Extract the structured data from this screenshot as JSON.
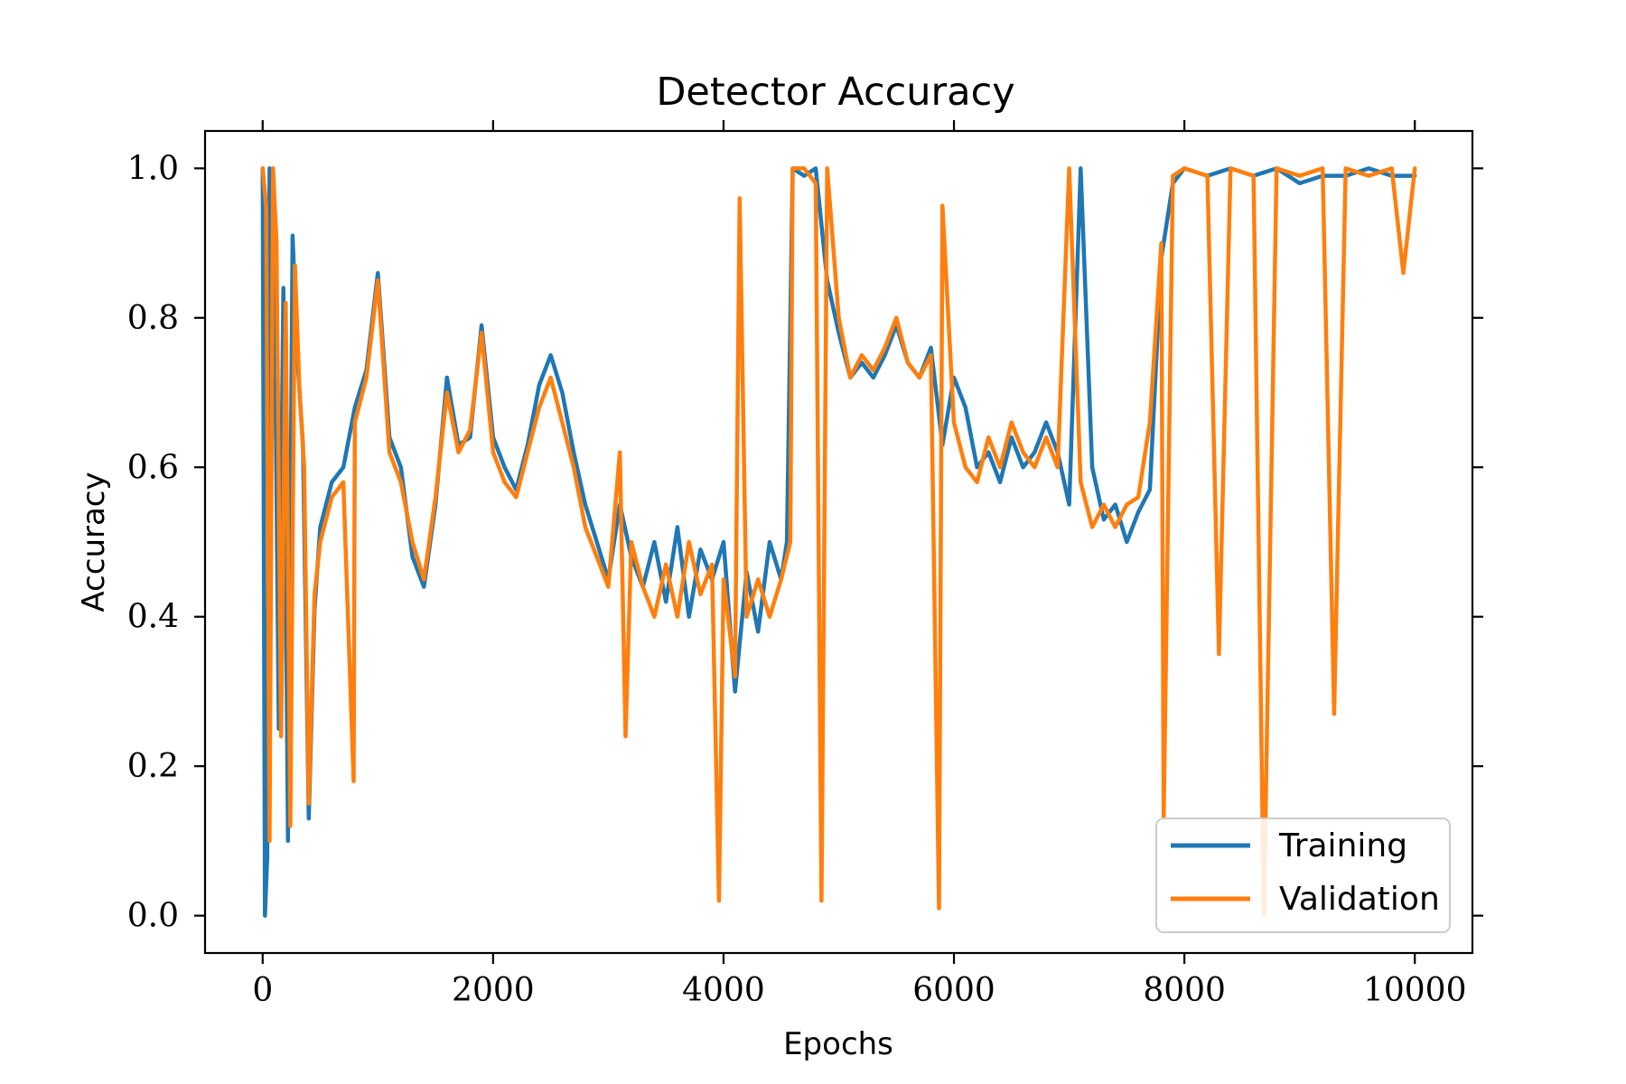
{
  "chart_data": {
    "type": "line",
    "title": "Detector Accuracy",
    "xlabel": "Epochs",
    "ylabel": "Accuracy",
    "xlim": [
      -500,
      10500
    ],
    "ylim": [
      -0.05,
      1.05
    ],
    "xticks": [
      0,
      2000,
      4000,
      6000,
      8000,
      10000
    ],
    "xtick_labels": [
      "0",
      "2000",
      "4000",
      "6000",
      "8000",
      "10000"
    ],
    "yticks": [
      0.0,
      0.2,
      0.4,
      0.6,
      0.8,
      1.0
    ],
    "ytick_labels": [
      "0.0",
      "0.2",
      "0.4",
      "0.6",
      "0.8",
      "1.0"
    ],
    "grid": false,
    "legend_position": "lower-right",
    "series": [
      {
        "name": "Training",
        "color": "#1f77b4",
        "x": [
          0,
          20,
          40,
          60,
          100,
          140,
          180,
          220,
          260,
          300,
          350,
          400,
          450,
          500,
          600,
          700,
          800,
          900,
          1000,
          1100,
          1200,
          1300,
          1400,
          1500,
          1600,
          1700,
          1800,
          1900,
          2000,
          2100,
          2200,
          2300,
          2400,
          2500,
          2600,
          2700,
          2800,
          2900,
          3000,
          3100,
          3200,
          3300,
          3400,
          3500,
          3600,
          3700,
          3800,
          3900,
          4000,
          4100,
          4200,
          4300,
          4400,
          4500,
          4550,
          4600,
          4700,
          4800,
          4900,
          5000,
          5100,
          5200,
          5300,
          5400,
          5500,
          5600,
          5700,
          5800,
          5900,
          6000,
          6100,
          6200,
          6300,
          6400,
          6500,
          6600,
          6700,
          6800,
          6900,
          7000,
          7100,
          7200,
          7300,
          7400,
          7500,
          7600,
          7700,
          7800,
          7900,
          8000,
          8200,
          8400,
          8600,
          8800,
          9000,
          9200,
          9400,
          9600,
          9800,
          10000
        ],
        "y": [
          1.0,
          0.0,
          0.08,
          1.0,
          0.9,
          0.25,
          0.84,
          0.1,
          0.91,
          0.75,
          0.63,
          0.13,
          0.41,
          0.52,
          0.58,
          0.6,
          0.68,
          0.73,
          0.86,
          0.64,
          0.6,
          0.48,
          0.44,
          0.55,
          0.72,
          0.63,
          0.64,
          0.79,
          0.64,
          0.6,
          0.57,
          0.63,
          0.71,
          0.75,
          0.7,
          0.62,
          0.55,
          0.5,
          0.45,
          0.55,
          0.48,
          0.44,
          0.5,
          0.42,
          0.52,
          0.4,
          0.49,
          0.45,
          0.5,
          0.3,
          0.46,
          0.38,
          0.5,
          0.45,
          0.5,
          1.0,
          0.99,
          1.0,
          0.85,
          0.78,
          0.72,
          0.74,
          0.72,
          0.75,
          0.79,
          0.74,
          0.72,
          0.76,
          0.63,
          0.72,
          0.68,
          0.6,
          0.62,
          0.58,
          0.64,
          0.6,
          0.62,
          0.66,
          0.62,
          0.55,
          1.0,
          0.6,
          0.53,
          0.55,
          0.5,
          0.54,
          0.57,
          0.88,
          0.98,
          1.0,
          0.99,
          1.0,
          0.99,
          1.0,
          0.98,
          0.99,
          0.99,
          1.0,
          0.99,
          0.99
        ]
      },
      {
        "name": "Validation",
        "color": "#ff7f0e",
        "x": [
          0,
          30,
          60,
          90,
          120,
          160,
          200,
          240,
          280,
          320,
          360,
          400,
          450,
          500,
          600,
          700,
          790,
          800,
          900,
          1000,
          1100,
          1200,
          1300,
          1400,
          1500,
          1600,
          1700,
          1800,
          1900,
          2000,
          2100,
          2200,
          2300,
          2400,
          2500,
          2600,
          2700,
          2800,
          2900,
          3000,
          3100,
          3150,
          3200,
          3300,
          3400,
          3500,
          3600,
          3700,
          3800,
          3900,
          3960,
          4000,
          4100,
          4140,
          4200,
          4300,
          4400,
          4500,
          4580,
          4600,
          4700,
          4800,
          4850,
          4900,
          5000,
          5100,
          5200,
          5300,
          5400,
          5500,
          5600,
          5700,
          5800,
          5870,
          5900,
          6000,
          6100,
          6200,
          6300,
          6400,
          6500,
          6600,
          6700,
          6800,
          6900,
          7000,
          7100,
          7200,
          7300,
          7400,
          7500,
          7600,
          7700,
          7800,
          7820,
          7900,
          8000,
          8200,
          8300,
          8400,
          8600,
          8690,
          8800,
          9000,
          9200,
          9300,
          9400,
          9600,
          9800,
          9900,
          10000
        ],
        "y": [
          1.0,
          0.95,
          0.1,
          1.0,
          0.9,
          0.24,
          0.82,
          0.12,
          0.87,
          0.7,
          0.6,
          0.15,
          0.43,
          0.5,
          0.56,
          0.58,
          0.18,
          0.66,
          0.72,
          0.85,
          0.62,
          0.58,
          0.5,
          0.45,
          0.56,
          0.7,
          0.62,
          0.65,
          0.78,
          0.62,
          0.58,
          0.56,
          0.62,
          0.68,
          0.72,
          0.66,
          0.6,
          0.52,
          0.48,
          0.44,
          0.62,
          0.24,
          0.5,
          0.44,
          0.4,
          0.47,
          0.4,
          0.5,
          0.43,
          0.47,
          0.02,
          0.45,
          0.32,
          0.96,
          0.4,
          0.45,
          0.4,
          0.45,
          0.5,
          1.0,
          1.0,
          0.98,
          0.02,
          1.0,
          0.8,
          0.72,
          0.75,
          0.73,
          0.76,
          0.8,
          0.74,
          0.72,
          0.75,
          0.01,
          0.95,
          0.66,
          0.6,
          0.58,
          0.64,
          0.6,
          0.66,
          0.62,
          0.6,
          0.64,
          0.6,
          1.0,
          0.58,
          0.52,
          0.55,
          0.52,
          0.55,
          0.56,
          0.66,
          0.9,
          0.13,
          0.99,
          1.0,
          0.99,
          0.35,
          1.0,
          0.99,
          0.0,
          1.0,
          0.99,
          1.0,
          0.27,
          1.0,
          0.99,
          1.0,
          0.86,
          1.0
        ]
      }
    ]
  }
}
